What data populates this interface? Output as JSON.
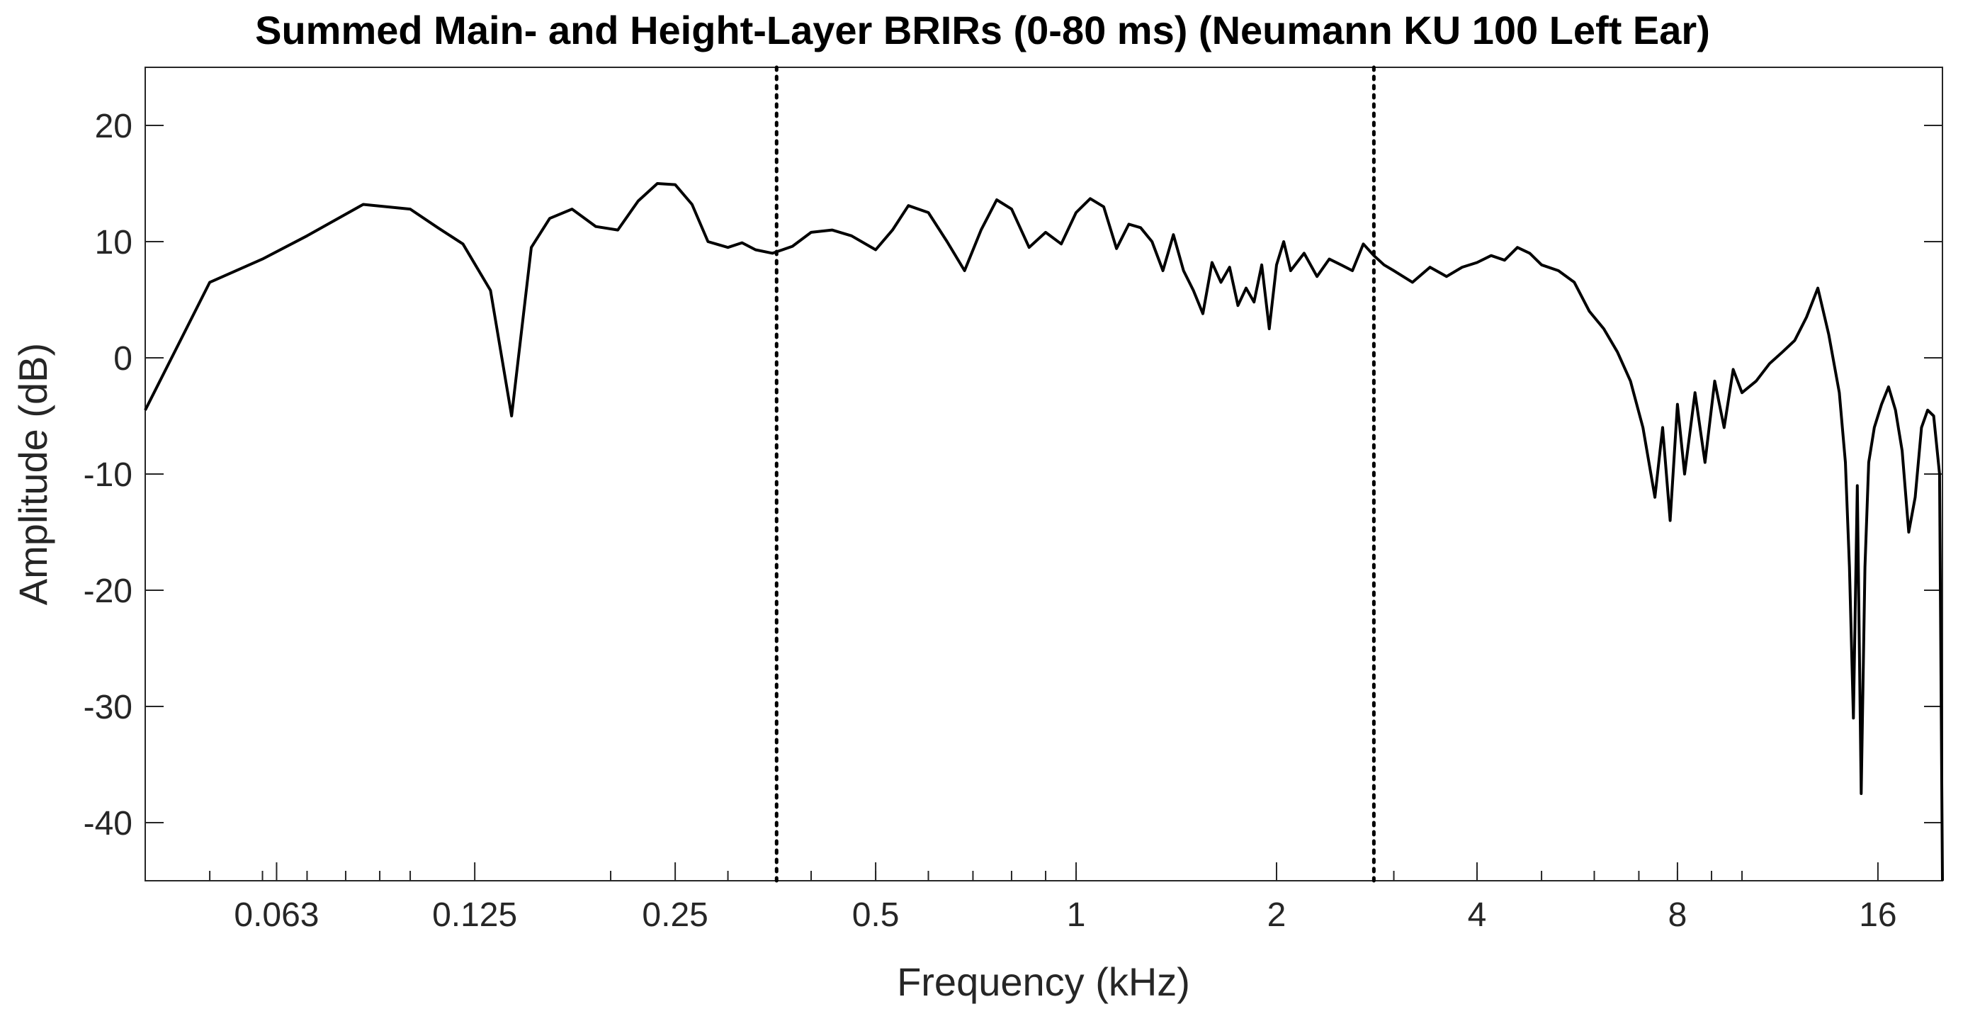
{
  "chart_data": {
    "type": "line",
    "title": "Summed Main- and Height-Layer BRIRs (0-80 ms) (Neumann KU 100 Left Ear)",
    "xlabel": "Frequency (kHz)",
    "ylabel": "Amplitude (dB)",
    "xscale": "log",
    "xlim": [
      0.04,
      20
    ],
    "ylim": [
      -45,
      25
    ],
    "xticks": [
      {
        "value": 0.063,
        "label": "0.063"
      },
      {
        "value": 0.125,
        "label": "0.125"
      },
      {
        "value": 0.25,
        "label": "0.25"
      },
      {
        "value": 0.5,
        "label": "0.5"
      },
      {
        "value": 1,
        "label": "1"
      },
      {
        "value": 2,
        "label": "2"
      },
      {
        "value": 4,
        "label": "4"
      },
      {
        "value": 8,
        "label": "8"
      },
      {
        "value": 16,
        "label": "16"
      }
    ],
    "yticks": [
      {
        "value": 20,
        "label": "20"
      },
      {
        "value": 10,
        "label": "10"
      },
      {
        "value": 0,
        "label": "0"
      },
      {
        "value": -10,
        "label": "-10"
      },
      {
        "value": -20,
        "label": "-20"
      },
      {
        "value": -30,
        "label": "-30"
      },
      {
        "value": -40,
        "label": "-40"
      }
    ],
    "grid": false,
    "vlines": [
      {
        "x": 0.355,
        "style": "dotted"
      },
      {
        "x": 2.8,
        "style": "dotted"
      }
    ],
    "series": [
      {
        "color": "#000000",
        "x": [
          0.04,
          0.05,
          0.06,
          0.07,
          0.085,
          0.1,
          0.11,
          0.12,
          0.132,
          0.142,
          0.152,
          0.162,
          0.175,
          0.19,
          0.205,
          0.22,
          0.235,
          0.25,
          0.265,
          0.28,
          0.3,
          0.315,
          0.33,
          0.35,
          0.375,
          0.4,
          0.43,
          0.46,
          0.5,
          0.53,
          0.56,
          0.6,
          0.64,
          0.68,
          0.72,
          0.76,
          0.8,
          0.85,
          0.9,
          0.95,
          1.0,
          1.05,
          1.1,
          1.15,
          1.2,
          1.25,
          1.3,
          1.35,
          1.4,
          1.45,
          1.5,
          1.55,
          1.6,
          1.65,
          1.7,
          1.75,
          1.8,
          1.85,
          1.9,
          1.95,
          2.0,
          2.05,
          2.1,
          2.2,
          2.3,
          2.4,
          2.5,
          2.6,
          2.7,
          2.8,
          2.9,
          3.0,
          3.2,
          3.4,
          3.6,
          3.8,
          4.0,
          4.2,
          4.4,
          4.6,
          4.8,
          5.0,
          5.3,
          5.6,
          5.9,
          6.2,
          6.5,
          6.8,
          7.1,
          7.4,
          7.6,
          7.8,
          8.0,
          8.2,
          8.5,
          8.8,
          9.1,
          9.4,
          9.7,
          10.0,
          10.5,
          11.0,
          11.5,
          12.0,
          12.5,
          13.0,
          13.5,
          14.0,
          14.3,
          14.5,
          14.7,
          14.9,
          15.1,
          15.3,
          15.5,
          15.8,
          16.2,
          16.6,
          17.0,
          17.4,
          17.8,
          18.2,
          18.6,
          19.0,
          19.4,
          19.8,
          20.0
        ],
        "y": [
          -4.5,
          6.5,
          8.5,
          10.5,
          13.2,
          12.8,
          11.2,
          9.8,
          5.8,
          -5.0,
          9.5,
          12.0,
          12.8,
          11.3,
          11.0,
          13.5,
          15.0,
          14.9,
          13.2,
          10.0,
          9.5,
          9.9,
          9.3,
          9.0,
          9.6,
          10.8,
          11.0,
          10.5,
          9.3,
          11.0,
          13.1,
          12.5,
          10.0,
          7.5,
          11.0,
          13.6,
          12.8,
          9.5,
          10.8,
          9.8,
          12.5,
          13.7,
          13.0,
          9.4,
          11.5,
          11.2,
          10.0,
          7.5,
          10.6,
          7.5,
          5.8,
          3.8,
          8.2,
          6.5,
          7.8,
          4.5,
          6.0,
          4.8,
          8.0,
          2.5,
          8.0,
          10.0,
          7.5,
          9.0,
          7.0,
          8.5,
          8.0,
          7.5,
          9.8,
          8.8,
          8.0,
          7.5,
          6.5,
          7.8,
          7.0,
          7.8,
          8.2,
          8.8,
          8.4,
          9.5,
          9.0,
          8.0,
          7.5,
          6.5,
          4.0,
          2.5,
          0.5,
          -2.0,
          -6.0,
          -12.0,
          -6.0,
          -14.0,
          -4.0,
          -10.0,
          -3.0,
          -9.0,
          -2.0,
          -6.0,
          -1.0,
          -3.0,
          -2.0,
          -0.5,
          0.5,
          1.5,
          3.5,
          6.0,
          2.0,
          -3.0,
          -9.0,
          -18.0,
          -31.0,
          -11.0,
          -37.5,
          -18.0,
          -9.0,
          -6.0,
          -4.0,
          -2.5,
          -4.5,
          -8.0,
          -15.0,
          -12.0,
          -6.0,
          -4.5,
          -5.0,
          -10.0,
          -45.0
        ]
      }
    ]
  }
}
